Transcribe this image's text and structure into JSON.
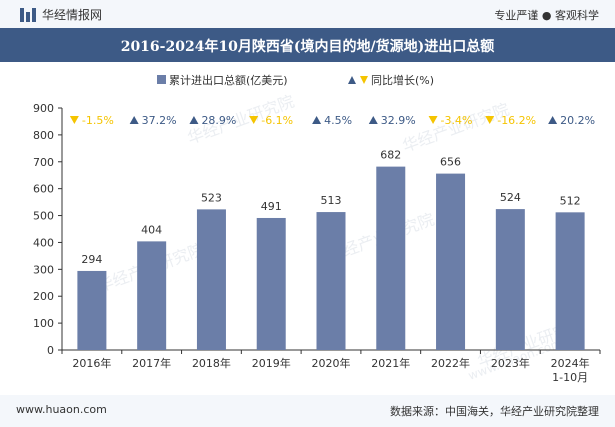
{
  "header": {
    "logo_text": "华经情报网",
    "slogan": "专业严谨 ● 客观科学"
  },
  "footer": {
    "website": "www.huaon.com",
    "source": "数据来源：中国海关，华经产业研究院整理"
  },
  "watermark": "华经产业研究院",
  "watermark_url": "www.huaon.com",
  "colors": {
    "bar": "#6b7ea8",
    "title_bg": "#3d5a86",
    "arrow_down": "#f5c400",
    "arrow_up": "#3d5a86"
  },
  "chart_data": {
    "type": "bar",
    "title": "2016-2024年10月陕西省(境内目的地/货源地)进出口总额",
    "categories": [
      "2016年",
      "2017年",
      "2018年",
      "2019年",
      "2020年",
      "2021年",
      "2022年",
      "2023年",
      "2024年\n1-10月"
    ],
    "series": [
      {
        "name": "累计进出口总额(亿美元)",
        "values": [
          294,
          404,
          523,
          491,
          513,
          682,
          656,
          524,
          512
        ]
      },
      {
        "name": "同比增长(%)",
        "values": [
          -1.5,
          37.2,
          28.9,
          -6.1,
          4.5,
          32.9,
          -3.4,
          -16.2,
          20.2
        ]
      }
    ],
    "value_labels": [
      "294",
      "404",
      "523",
      "491",
      "513",
      "682",
      "656",
      "524",
      "512"
    ],
    "growth_labels": [
      "-1.5%",
      "37.2%",
      "28.9%",
      "-6.1%",
      "4.5%",
      "32.9%",
      "-3.4%",
      "-16.2%",
      "20.2%"
    ],
    "yticks": [
      "0",
      "100",
      "200",
      "300",
      "400",
      "500",
      "600",
      "700",
      "800",
      "900"
    ],
    "ylim": [
      0,
      900
    ],
    "legend_position": "top-center",
    "grid": false
  }
}
